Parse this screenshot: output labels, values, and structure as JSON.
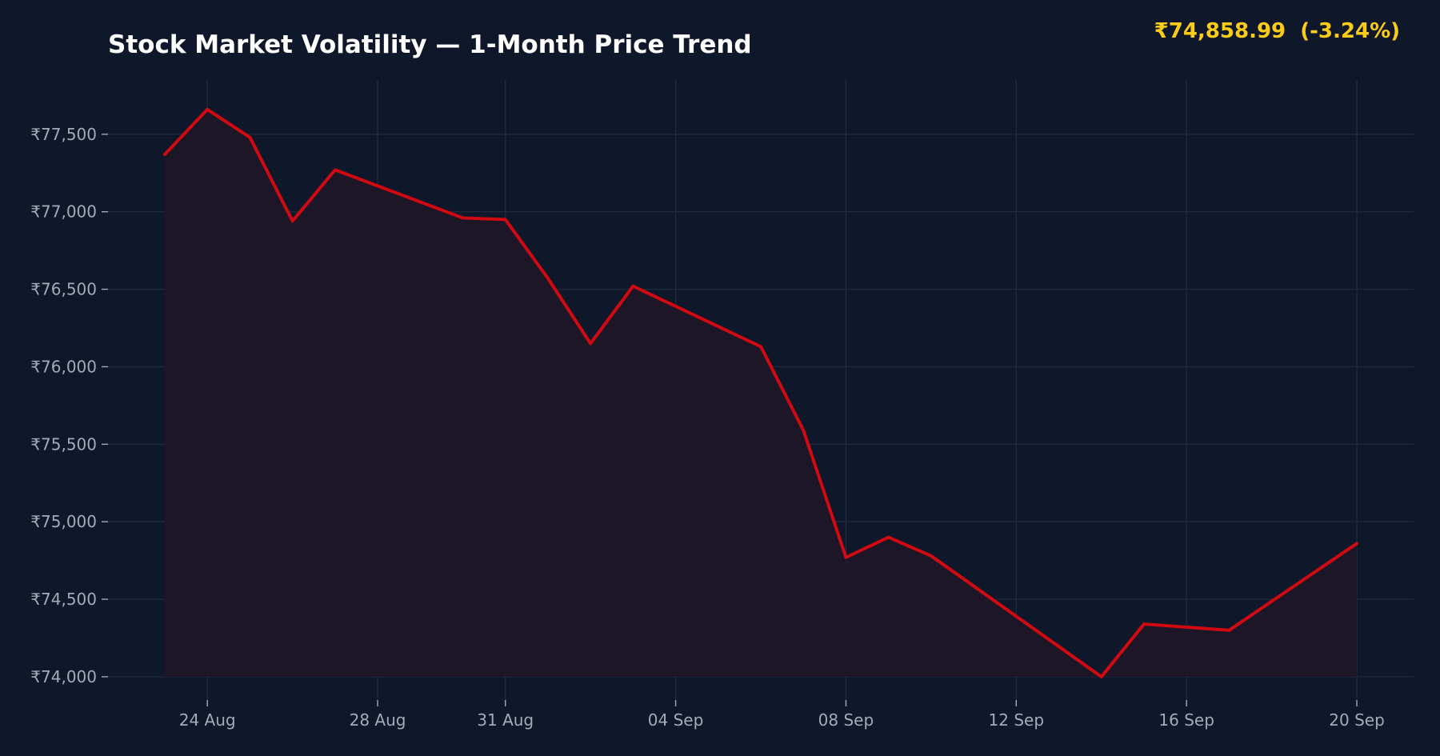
{
  "header": {
    "title": "Stock Market Volatility — 1-Month Price Trend",
    "price_readout": "₹74,858.99  (-3.24%)"
  },
  "colors": {
    "background": "#0f172a",
    "line": "#d00a10",
    "area_fill": "#1f1626",
    "readout": "#facc15",
    "grid": "#1f2a3d",
    "tick_text": "#a3abb9"
  },
  "chart_data": {
    "type": "area",
    "title": "Stock Market Volatility — 1-Month Price Trend",
    "xlabel": "",
    "ylabel": "",
    "grid": true,
    "ylim": [
      73850,
      77850
    ],
    "xlim": [
      "2025-08-21T16:00",
      "2025-09-21T08:00"
    ],
    "y_ticks": [
      {
        "value": 74000,
        "label": "₹74,000"
      },
      {
        "value": 74500,
        "label": "₹74,500"
      },
      {
        "value": 75000,
        "label": "₹75,000"
      },
      {
        "value": 75500,
        "label": "₹75,500"
      },
      {
        "value": 76000,
        "label": "₹76,000"
      },
      {
        "value": 76500,
        "label": "₹76,500"
      },
      {
        "value": 77000,
        "label": "₹77,000"
      },
      {
        "value": 77500,
        "label": "₹77,500"
      }
    ],
    "x_ticks": [
      {
        "value": "2025-08-24",
        "label": "24 Aug"
      },
      {
        "value": "2025-08-28",
        "label": "28 Aug"
      },
      {
        "value": "2025-08-31",
        "label": "31 Aug"
      },
      {
        "value": "2025-09-04",
        "label": "04 Sep"
      },
      {
        "value": "2025-09-08",
        "label": "08 Sep"
      },
      {
        "value": "2025-09-12",
        "label": "12 Sep"
      },
      {
        "value": "2025-09-16",
        "label": "16 Sep"
      },
      {
        "value": "2025-09-20",
        "label": "20 Sep"
      }
    ],
    "points": [
      {
        "x": "2025-08-23",
        "y": 77370
      },
      {
        "x": "2025-08-24",
        "y": 77660
      },
      {
        "x": "2025-08-25",
        "y": 77480
      },
      {
        "x": "2025-08-26",
        "y": 76940
      },
      {
        "x": "2025-08-27",
        "y": 77270
      },
      {
        "x": "2025-08-30",
        "y": 76960
      },
      {
        "x": "2025-08-31",
        "y": 76950
      },
      {
        "x": "2025-09-01",
        "y": 76570
      },
      {
        "x": "2025-09-02",
        "y": 76150
      },
      {
        "x": "2025-09-03",
        "y": 76520
      },
      {
        "x": "2025-09-06",
        "y": 76130
      },
      {
        "x": "2025-09-07",
        "y": 75590
      },
      {
        "x": "2025-09-08",
        "y": 74770
      },
      {
        "x": "2025-09-09",
        "y": 74900
      },
      {
        "x": "2025-09-10",
        "y": 74780
      },
      {
        "x": "2025-09-14",
        "y": 74000
      },
      {
        "x": "2025-09-15",
        "y": 74340
      },
      {
        "x": "2025-09-17",
        "y": 74300
      },
      {
        "x": "2025-09-20",
        "y": 74860
      }
    ]
  }
}
